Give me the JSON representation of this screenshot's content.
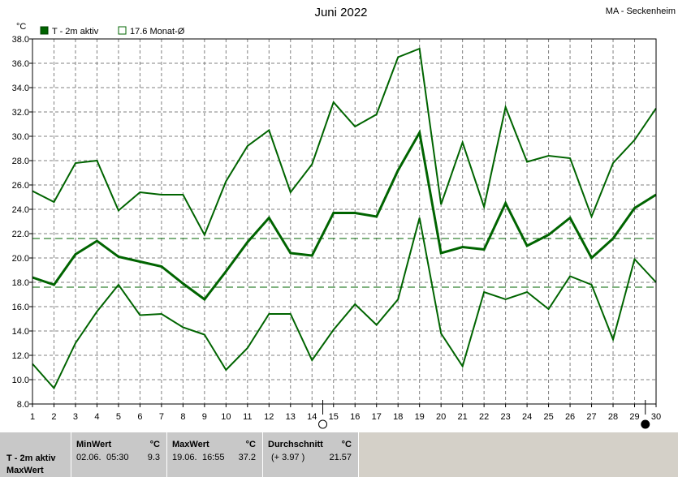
{
  "title": "Juni 2022",
  "station": "MA - Seckenheim",
  "unit": "°C",
  "legend": [
    {
      "label": "T - 2m aktiv",
      "color": "#006400",
      "filled": true
    },
    {
      "label": "17.6 Monat-Ø",
      "color": "#006400",
      "filled": false
    }
  ],
  "chart_data": {
    "type": "line",
    "x": [
      1,
      2,
      3,
      4,
      5,
      6,
      7,
      8,
      9,
      10,
      11,
      12,
      13,
      14,
      15,
      16,
      17,
      18,
      19,
      20,
      21,
      22,
      23,
      24,
      25,
      26,
      27,
      28,
      29,
      30
    ],
    "ylim": [
      8.0,
      38.0
    ],
    "yticks": [
      "8.0",
      "10.0",
      "12.0",
      "14.0",
      "16.0",
      "18.0",
      "20.0",
      "22.0",
      "24.0",
      "26.0",
      "28.0",
      "30.0",
      "32.0",
      "34.0",
      "36.0",
      "38.0"
    ],
    "xticks": [
      "1",
      "2",
      "3",
      "4",
      "5",
      "6",
      "7",
      "8",
      "9",
      "10",
      "11",
      "12",
      "13",
      "14",
      "15",
      "16",
      "17",
      "18",
      "19",
      "20",
      "21",
      "22",
      "23",
      "24",
      "25",
      "26",
      "27",
      "28",
      "29",
      "30"
    ],
    "grid": true,
    "series": [
      {
        "role": "max",
        "values": [
          25.5,
          24.6,
          27.8,
          28.0,
          23.9,
          25.4,
          25.2,
          25.2,
          21.9,
          26.3,
          29.2,
          30.5,
          25.4,
          27.7,
          32.8,
          30.8,
          31.8,
          36.5,
          37.2,
          24.4,
          29.5,
          24.2,
          32.4,
          27.9,
          28.4,
          28.2,
          23.4,
          27.8,
          29.7,
          32.3
        ]
      },
      {
        "role": "mean",
        "values": [
          18.4,
          17.8,
          20.3,
          21.4,
          20.1,
          19.7,
          19.3,
          17.9,
          16.6,
          18.9,
          21.3,
          23.3,
          20.4,
          20.2,
          23.7,
          23.7,
          23.4,
          27.2,
          30.3,
          20.4,
          20.9,
          20.7,
          24.5,
          21.0,
          21.9,
          23.3,
          20.0,
          21.6,
          24.1,
          25.2
        ]
      },
      {
        "role": "min",
        "values": [
          11.3,
          9.3,
          13.0,
          15.6,
          17.8,
          15.3,
          15.4,
          14.3,
          13.7,
          10.8,
          12.6,
          15.4,
          15.4,
          11.6,
          14.1,
          16.2,
          14.5,
          16.6,
          23.3,
          13.8,
          11.1,
          17.2,
          16.6,
          17.2,
          15.8,
          18.5,
          17.8,
          13.3,
          19.9,
          18.0
        ]
      }
    ],
    "reference_lines": [
      17.6,
      21.6
    ],
    "moon": [
      {
        "day": 14,
        "phase": "full"
      },
      {
        "day": 29,
        "phase": "new"
      }
    ]
  },
  "footer": {
    "row_label_1": "T - 2m aktiv",
    "row_label_2": "MaxWert",
    "min": {
      "header": "MinWert",
      "unit": "°C",
      "date": "02.06.",
      "time": "05:30",
      "value": "9.3"
    },
    "max": {
      "header": "MaxWert",
      "unit": "°C",
      "date": "19.06.",
      "time": "16:55",
      "value": "37.2"
    },
    "avg": {
      "header": "Durchschnitt",
      "unit": "°C",
      "diff": "(+ 3.97 )",
      "value": "21.57"
    }
  }
}
